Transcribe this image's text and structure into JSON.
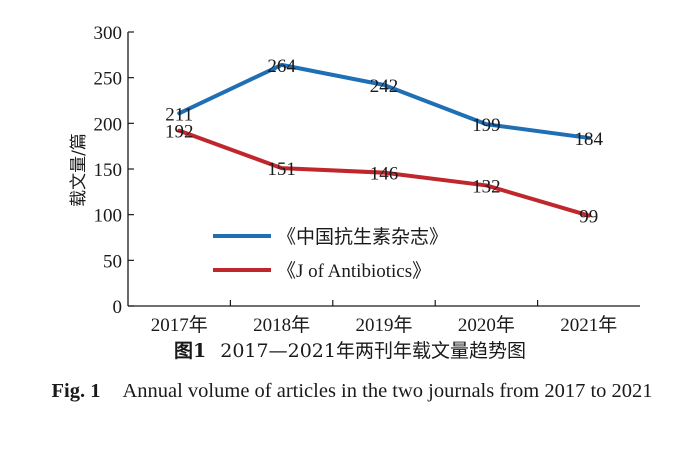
{
  "chart_data": {
    "type": "line",
    "categories": [
      "2017年",
      "2018年",
      "2019年",
      "2020年",
      "2021年"
    ],
    "series": [
      {
        "name": "《中国抗生素杂志》",
        "values": [
          211,
          264,
          242,
          199,
          184
        ],
        "color": "#1f6fb5"
      },
      {
        "name": "《J of Antibiotics》",
        "values": [
          192,
          151,
          146,
          132,
          99
        ],
        "color": "#c0272d"
      }
    ],
    "ylabel": "载文量/篇",
    "ylim": [
      0,
      300
    ],
    "yticks": [
      0,
      50,
      100,
      150,
      200,
      250,
      300
    ],
    "grid": false,
    "legend_position": "lower-left"
  },
  "caption": {
    "cn_number": "图1",
    "cn_text": "2017—2021年两刊年载文量趋势图",
    "en_number": "Fig. 1",
    "en_text": "Annual volume of articles in the two journals from 2017 to 2021"
  }
}
